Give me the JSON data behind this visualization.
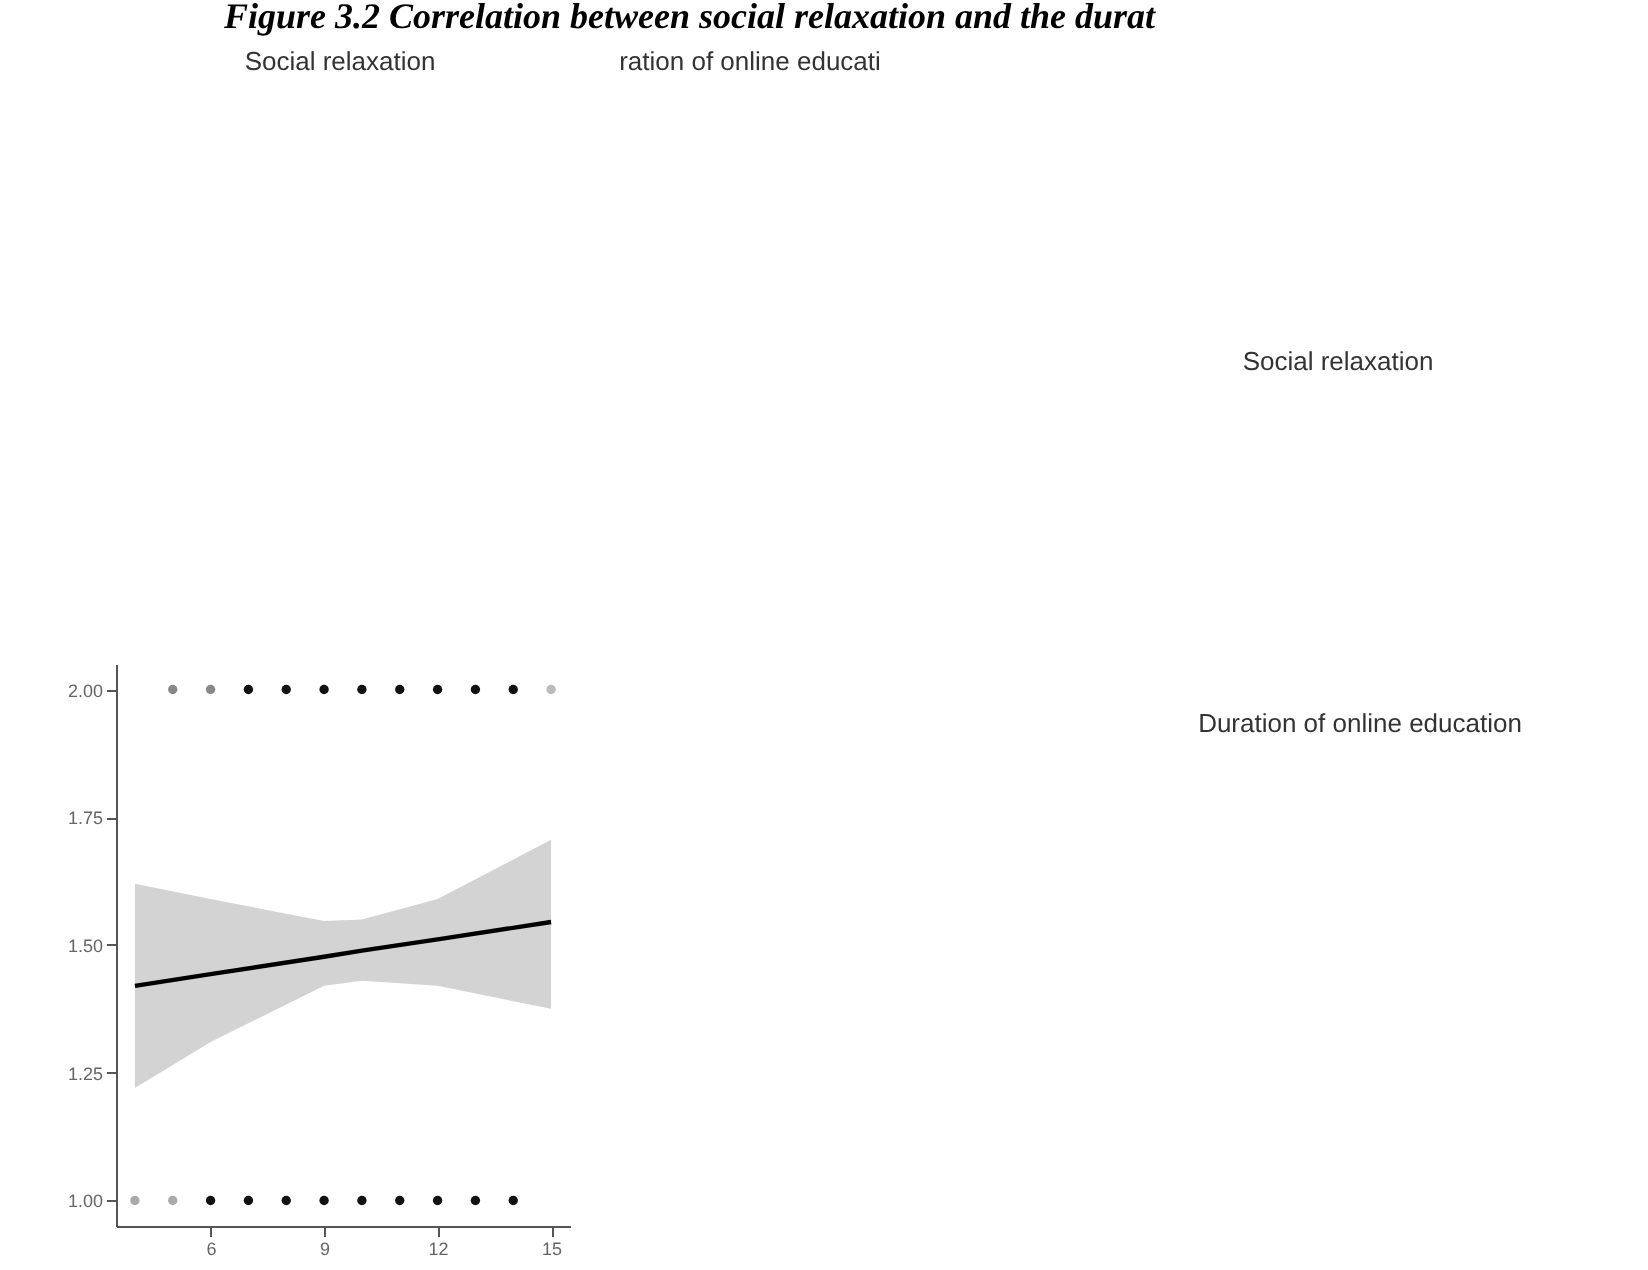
{
  "chart_data": {
    "type": "scatter",
    "title": "Figure 3.2 Correlation between social relaxation and the durat",
    "annotations": [
      "Social relaxation",
      "ration of online educati",
      "Social relaxation",
      "Duration of online education"
    ],
    "xlim": [
      3.5,
      15.5
    ],
    "xticks": [
      6,
      9,
      12,
      15
    ],
    "ylim": [
      0.95,
      2.05
    ],
    "yticks": [
      {
        "value": 1,
        "label": "1.00"
      },
      {
        "value": 1.25,
        "label": "1.25"
      },
      {
        "value": 1.5,
        "label": "1.50"
      },
      {
        "value": 1.75,
        "label": "1.75"
      },
      {
        "value": 2,
        "label": "2.00"
      }
    ],
    "grid": false,
    "series": [
      {
        "marker": "circle",
        "x": [
          5,
          6,
          7,
          8,
          9,
          10,
          11,
          12,
          13,
          14,
          15,
          4,
          5,
          6,
          7,
          8,
          9,
          10,
          11,
          12,
          13,
          14
        ],
        "values": [
          2,
          2,
          2,
          2,
          2,
          2,
          2,
          2,
          2,
          2,
          2,
          1,
          1,
          1,
          1,
          1,
          1,
          1,
          1,
          1,
          1,
          1
        ],
        "colors": [
          "#888888",
          "#888888",
          "#111111",
          "#111111",
          "#111111",
          "#111111",
          "#111111",
          "#111111",
          "#111111",
          "#111111",
          "#bbbbbb",
          "#aaaaaa",
          "#aaaaaa",
          "#111111",
          "#111111",
          "#111111",
          "#111111",
          "#111111",
          "#111111",
          "#111111",
          "#111111",
          "#111111"
        ]
      },
      {
        "type": "line",
        "marker": "none",
        "color": "#000000",
        "x": [
          4,
          6,
          9,
          10,
          12,
          15
        ],
        "values": [
          1.42,
          1.443,
          1.477,
          1.489,
          1.511,
          1.545
        ],
        "lower": [
          1.22,
          1.31,
          1.42,
          1.43,
          1.42,
          1.375
        ],
        "upper": [
          1.62,
          1.59,
          1.547,
          1.55,
          1.59,
          1.706
        ]
      }
    ]
  }
}
